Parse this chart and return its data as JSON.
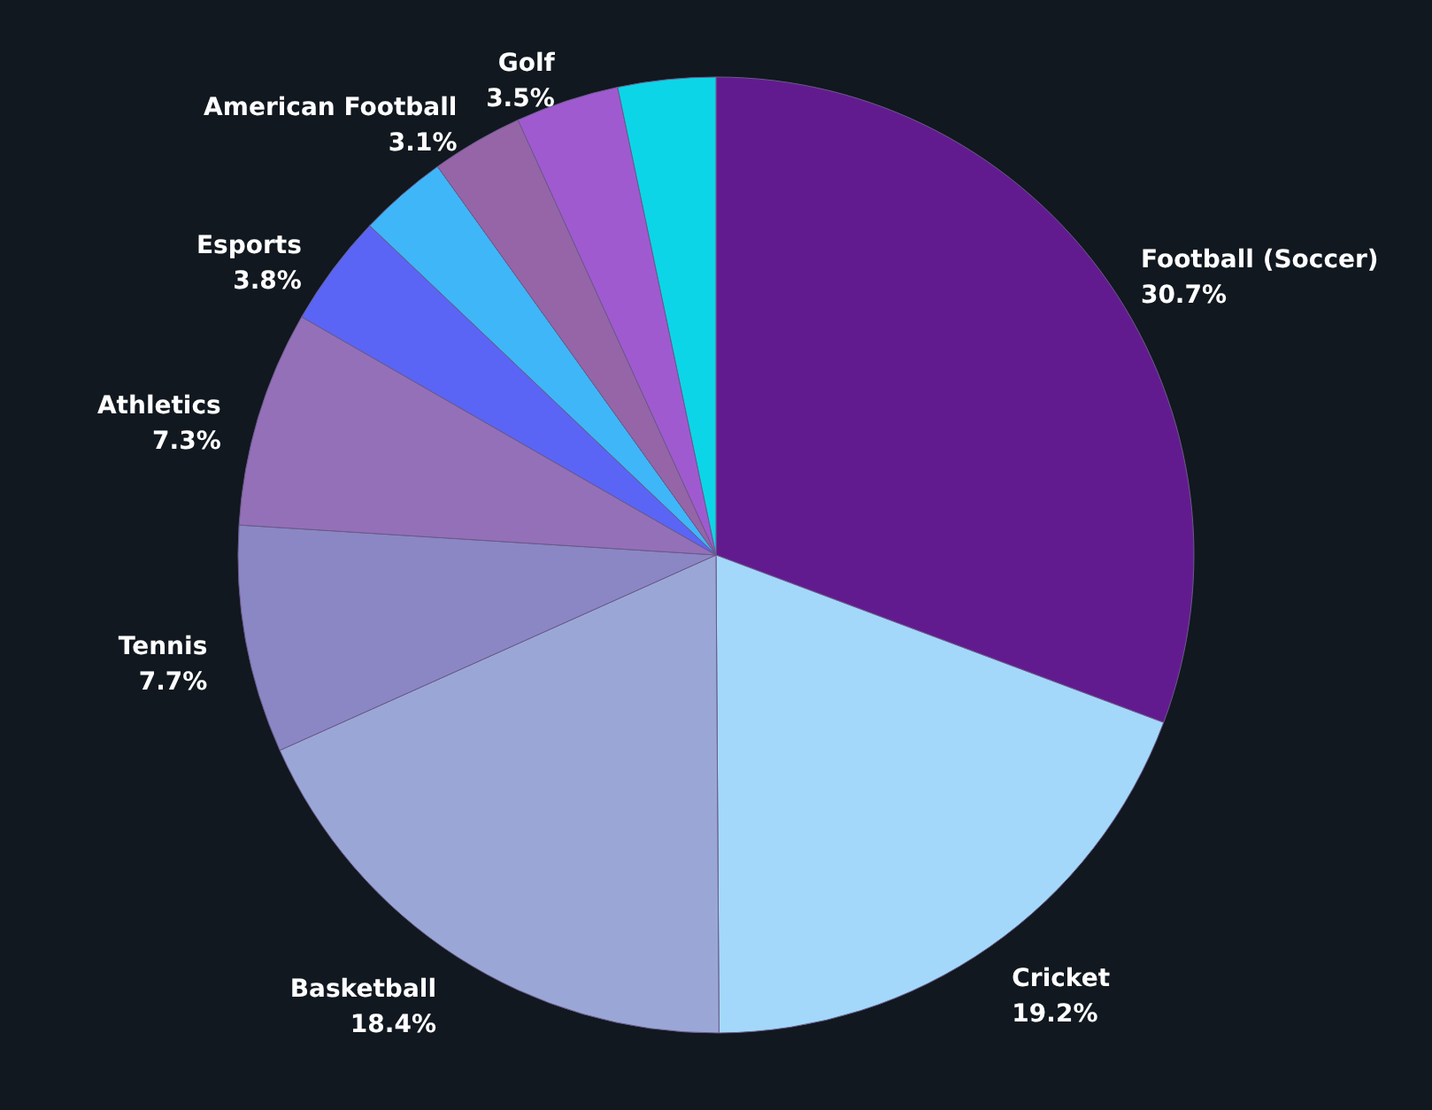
{
  "chart_data": {
    "type": "pie",
    "categories": [
      "Football (Soccer)",
      "Cricket",
      "Basketball",
      "Tennis",
      "Athletics",
      "Esports",
      null,
      "American Football",
      "Golf",
      null
    ],
    "values": [
      30.7,
      19.2,
      18.4,
      7.7,
      7.3,
      3.8,
      3.0,
      3.1,
      3.5,
      3.3
    ],
    "value_labels": [
      "30.7%",
      "19.2%",
      "18.4%",
      "7.7%",
      "7.3%",
      "3.8%",
      null,
      "3.1%",
      "3.5%",
      null
    ],
    "colors": [
      "#621b8f",
      "#a3d8fb",
      "#9aa7d6",
      "#8a87c4",
      "#9470b8",
      "#5a65f5",
      "#3fb6f8",
      "#9565a8",
      "#a05ad0",
      "#0dd5e8"
    ]
  }
}
